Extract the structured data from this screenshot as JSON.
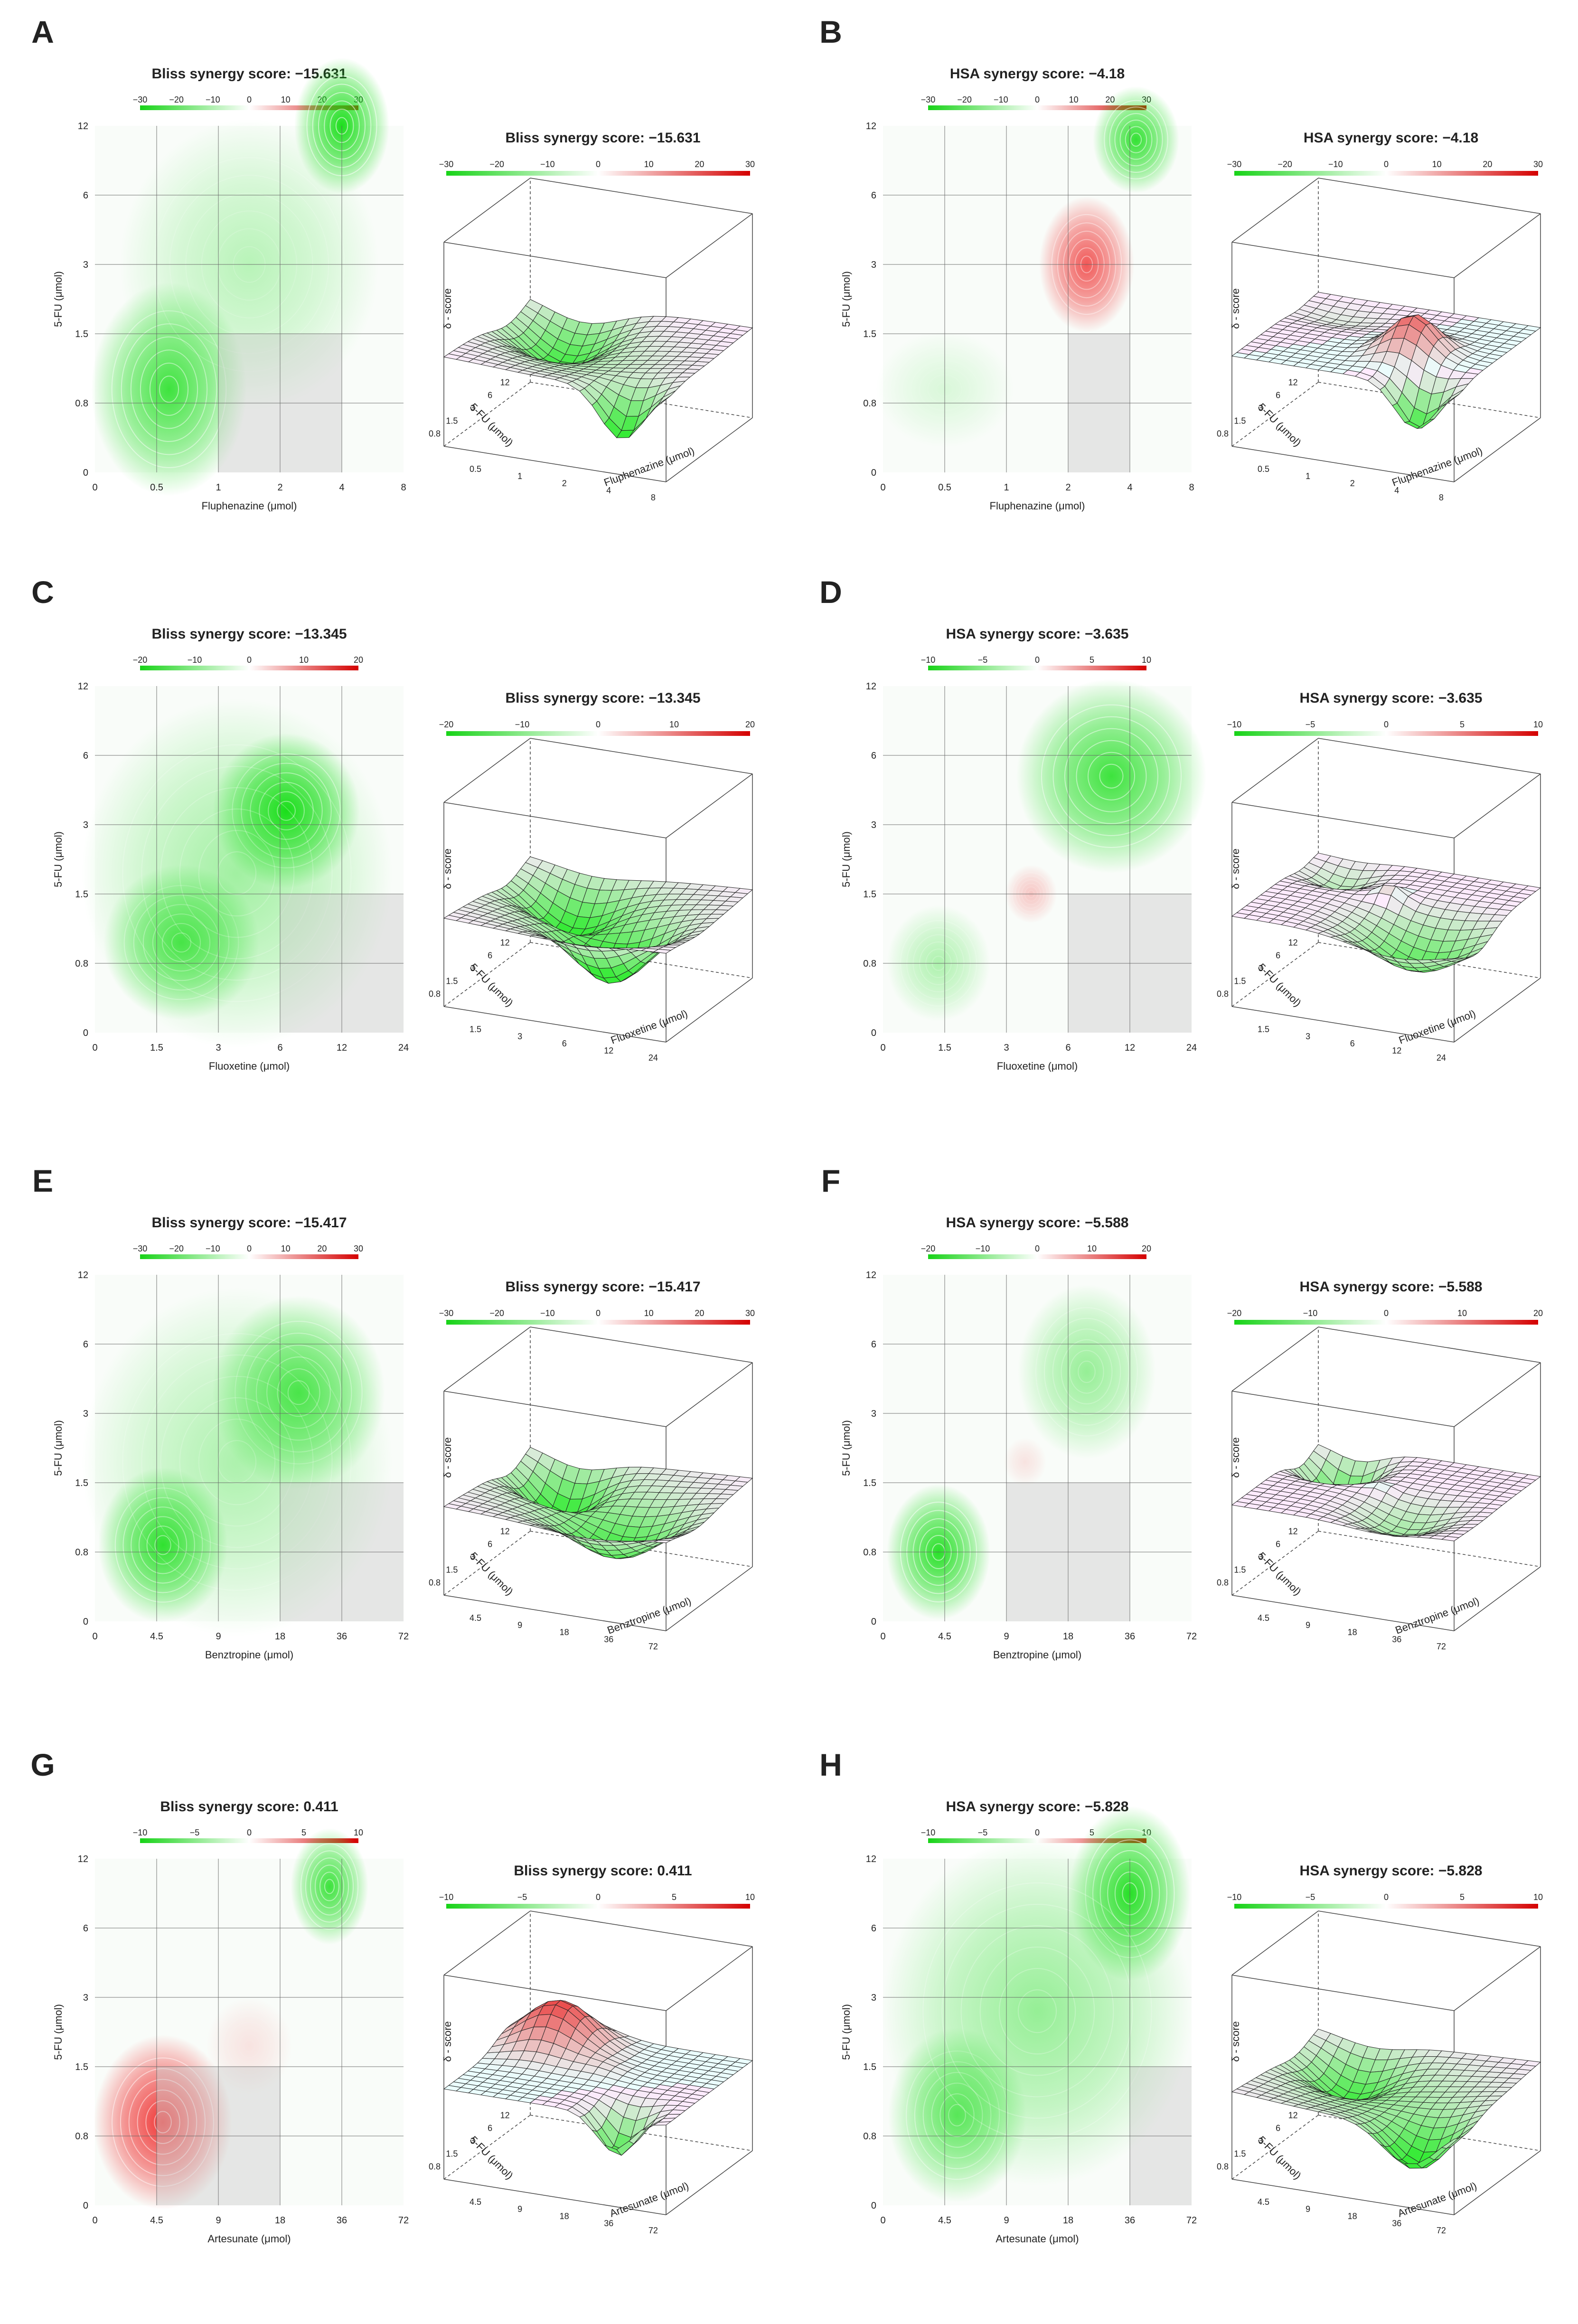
{
  "figure": {
    "panels": [
      {
        "letter": "A",
        "method": "Bliss",
        "score": "−15.631",
        "drug": "Fluphenazine (μmol)",
        "xticks": [
          "0",
          "0.5",
          "1",
          "2",
          "4",
          "8"
        ],
        "scale": [
          -30,
          -20,
          -10,
          0,
          10,
          20,
          30
        ],
        "zmin": -30,
        "zmax": 30,
        "shade": [
          2,
          4
        ],
        "blobs": [
          {
            "x": 4,
            "y": 5,
            "sx": 0.55,
            "sy": 0.7,
            "v": -1
          },
          {
            "x": 1.2,
            "y": 1.2,
            "sx": 0.9,
            "sy": 1.1,
            "v": -0.85
          },
          {
            "x": 2.5,
            "y": 3,
            "sx": 1.5,
            "sy": 1.5,
            "v": -0.3
          }
        ]
      },
      {
        "letter": "B",
        "method": "HSA",
        "score": "−4.18",
        "drug": "Fluphenazine (μmol)",
        "xticks": [
          "0",
          "0.5",
          "1",
          "2",
          "4",
          "8"
        ],
        "scale": [
          -30,
          -20,
          -10,
          0,
          10,
          20,
          30
        ],
        "zmin": -30,
        "zmax": 30,
        "shade": [
          3,
          4
        ],
        "blobs": [
          {
            "x": 3.3,
            "y": 3.0,
            "sx": 0.55,
            "sy": 0.7,
            "v": 0.75
          },
          {
            "x": 4.1,
            "y": 4.8,
            "sx": 0.5,
            "sy": 0.55,
            "v": -0.9
          },
          {
            "x": 1,
            "y": 1.2,
            "sx": 0.8,
            "sy": 0.6,
            "v": -0.15
          }
        ]
      },
      {
        "letter": "C",
        "method": "Bliss",
        "score": "−13.345",
        "drug": "Fluoxetine (μmol)",
        "xticks": [
          "0",
          "1.5",
          "3",
          "6",
          "12",
          "24"
        ],
        "scale": [
          -20,
          -10,
          0,
          10,
          20
        ],
        "zmin": -20,
        "zmax": 20,
        "shade": [
          3,
          5
        ],
        "blobs": [
          {
            "x": 3.1,
            "y": 3.2,
            "sx": 0.85,
            "sy": 0.8,
            "v": -1
          },
          {
            "x": 1.4,
            "y": 1.3,
            "sx": 0.9,
            "sy": 0.8,
            "v": -0.75
          },
          {
            "x": 2.3,
            "y": 2.3,
            "sx": 1.8,
            "sy": 1.8,
            "v": -0.4
          }
        ]
      },
      {
        "letter": "D",
        "method": "HSA",
        "score": "−3.635",
        "drug": "Fluoxetine (μmol)",
        "xticks": [
          "0",
          "1.5",
          "3",
          "6",
          "12",
          "24"
        ],
        "scale": [
          -10,
          -5,
          0,
          5,
          10
        ],
        "zmin": -10,
        "zmax": 10,
        "shade": [
          3,
          5
        ],
        "blobs": [
          {
            "x": 3.7,
            "y": 3.7,
            "sx": 1.1,
            "sy": 1.0,
            "v": -0.85
          },
          {
            "x": 2.4,
            "y": 2.0,
            "sx": 0.3,
            "sy": 0.3,
            "v": 0.25
          },
          {
            "x": 0.9,
            "y": 1.0,
            "sx": 0.6,
            "sy": 0.6,
            "v": -0.35
          }
        ]
      },
      {
        "letter": "E",
        "method": "Bliss",
        "score": "−15.417",
        "drug": "Benztropine (μmol)",
        "xticks": [
          "0",
          "4.5",
          "9",
          "18",
          "36",
          "72"
        ],
        "scale": [
          -30,
          -20,
          -10,
          0,
          10,
          20,
          30
        ],
        "zmin": -30,
        "zmax": 30,
        "shade": [
          3,
          5
        ],
        "blobs": [
          {
            "x": 3.3,
            "y": 3.3,
            "sx": 1.0,
            "sy": 1.0,
            "v": -0.75
          },
          {
            "x": 1.1,
            "y": 1.1,
            "sx": 0.75,
            "sy": 0.8,
            "v": -0.9
          },
          {
            "x": 2.3,
            "y": 2.3,
            "sx": 1.8,
            "sy": 1.8,
            "v": -0.35
          }
        ]
      },
      {
        "letter": "F",
        "method": "HSA",
        "score": "−5.588",
        "drug": "Benztropine (μmol)",
        "xticks": [
          "0",
          "4.5",
          "9",
          "18",
          "36",
          "72"
        ],
        "scale": [
          -20,
          -10,
          0,
          10,
          20
        ],
        "zmin": -20,
        "zmax": 20,
        "shade": [
          2,
          4
        ],
        "blobs": [
          {
            "x": 3.3,
            "y": 3.6,
            "sx": 0.8,
            "sy": 0.9,
            "v": -0.45
          },
          {
            "x": 0.9,
            "y": 1.0,
            "sx": 0.6,
            "sy": 0.7,
            "v": -0.95
          },
          {
            "x": 2.3,
            "y": 2.3,
            "sx": 0.25,
            "sy": 0.25,
            "v": 0.12
          }
        ]
      },
      {
        "letter": "G",
        "method": "Bliss",
        "score": "0.411",
        "drug": "Artesunate (μmol)",
        "xticks": [
          "0",
          "4.5",
          "9",
          "18",
          "36",
          "72"
        ],
        "scale": [
          -10,
          -5,
          0,
          5,
          10
        ],
        "zmin": -10,
        "zmax": 10,
        "shade": [
          1,
          3
        ],
        "blobs": [
          {
            "x": 1.1,
            "y": 1.2,
            "sx": 0.8,
            "sy": 0.9,
            "v": 0.9
          },
          {
            "x": 3.8,
            "y": 4.6,
            "sx": 0.45,
            "sy": 0.6,
            "v": -0.85
          },
          {
            "x": 2.5,
            "y": 2.3,
            "sx": 0.5,
            "sy": 0.5,
            "v": 0.12
          }
        ]
      },
      {
        "letter": "H",
        "method": "HSA",
        "score": "−5.828",
        "drug": "Artesunate (μmol)",
        "xticks": [
          "0",
          "4.5",
          "9",
          "18",
          "36",
          "72"
        ],
        "scale": [
          -10,
          -5,
          0,
          5,
          10
        ],
        "zmin": -10,
        "zmax": 10,
        "shade": [
          4,
          5
        ],
        "blobs": [
          {
            "x": 4.0,
            "y": 4.5,
            "sx": 0.7,
            "sy": 0.9,
            "v": -0.95
          },
          {
            "x": 1.2,
            "y": 1.3,
            "sx": 0.8,
            "sy": 0.9,
            "v": -0.7
          },
          {
            "x": 2.5,
            "y": 2.8,
            "sx": 1.8,
            "sy": 1.8,
            "v": -0.45
          }
        ]
      }
    ],
    "yticks": [
      "0",
      "0.8",
      "1.5",
      "3",
      "6",
      "12"
    ],
    "ylabel": "5-FU (μmol)",
    "zlabel": "δ - score",
    "title_suffix": " synergy score: "
  },
  "chart_data": [
    {
      "type": "heatmap",
      "panel": "A",
      "title": "Bliss synergy score: −15.631",
      "xlabel": "Fluphenazine (μmol)",
      "ylabel": "5-FU (μmol)",
      "x": [
        0,
        0.5,
        1,
        2,
        4,
        8
      ],
      "y": [
        0,
        0.8,
        1.5,
        3,
        6,
        12
      ],
      "color_scale": [
        -30,
        30
      ],
      "zlabel": "δ - score",
      "synergy_score": -15.631
    },
    {
      "type": "heatmap",
      "panel": "B",
      "title": "HSA synergy score: −4.18",
      "xlabel": "Fluphenazine (μmol)",
      "ylabel": "5-FU (μmol)",
      "x": [
        0,
        0.5,
        1,
        2,
        4,
        8
      ],
      "y": [
        0,
        0.8,
        1.5,
        3,
        6,
        12
      ],
      "color_scale": [
        -30,
        30
      ],
      "zlabel": "δ - score",
      "synergy_score": -4.18
    },
    {
      "type": "heatmap",
      "panel": "C",
      "title": "Bliss synergy score: −13.345",
      "xlabel": "Fluoxetine (μmol)",
      "ylabel": "5-FU (μmol)",
      "x": [
        0,
        1.5,
        3,
        6,
        12,
        24
      ],
      "y": [
        0,
        0.8,
        1.5,
        3,
        6,
        12
      ],
      "color_scale": [
        -20,
        20
      ],
      "zlabel": "δ - score",
      "synergy_score": -13.345
    },
    {
      "type": "heatmap",
      "panel": "D",
      "title": "HSA synergy score: −3.635",
      "xlabel": "Fluoxetine (μmol)",
      "ylabel": "5-FU (μmol)",
      "x": [
        0,
        1.5,
        3,
        6,
        12,
        24
      ],
      "y": [
        0,
        0.8,
        1.5,
        3,
        6,
        12
      ],
      "color_scale": [
        -10,
        10
      ],
      "zlabel": "δ - score",
      "synergy_score": -3.635
    },
    {
      "type": "heatmap",
      "panel": "E",
      "title": "Bliss synergy score: −15.417",
      "xlabel": "Benztropine (μmol)",
      "ylabel": "5-FU (μmol)",
      "x": [
        0,
        4.5,
        9,
        18,
        36,
        72
      ],
      "y": [
        0,
        0.8,
        1.5,
        3,
        6,
        12
      ],
      "color_scale": [
        -30,
        30
      ],
      "zlabel": "δ - score",
      "synergy_score": -15.417
    },
    {
      "type": "heatmap",
      "panel": "F",
      "title": "HSA synergy score: −5.588",
      "xlabel": "Benztropine (μmol)",
      "ylabel": "5-FU (μmol)",
      "x": [
        0,
        4.5,
        9,
        18,
        36,
        72
      ],
      "y": [
        0,
        0.8,
        1.5,
        3,
        6,
        12
      ],
      "color_scale": [
        -20,
        20
      ],
      "zlabel": "δ - score",
      "synergy_score": -5.588
    },
    {
      "type": "heatmap",
      "panel": "G",
      "title": "Bliss synergy score: 0.411",
      "xlabel": "Artesunate (μmol)",
      "ylabel": "5-FU (μmol)",
      "x": [
        0,
        4.5,
        9,
        18,
        36,
        72
      ],
      "y": [
        0,
        0.8,
        1.5,
        3,
        6,
        12
      ],
      "color_scale": [
        -10,
        10
      ],
      "zlabel": "δ - score",
      "synergy_score": 0.411
    },
    {
      "type": "heatmap",
      "panel": "H",
      "title": "HSA synergy score: −5.828",
      "xlabel": "Artesunate (μmol)",
      "ylabel": "5-FU (μmol)",
      "x": [
        0,
        4.5,
        9,
        18,
        36,
        72
      ],
      "y": [
        0,
        0.8,
        1.5,
        3,
        6,
        12
      ],
      "color_scale": [
        -10,
        10
      ],
      "zlabel": "δ - score",
      "synergy_score": -5.828
    }
  ]
}
